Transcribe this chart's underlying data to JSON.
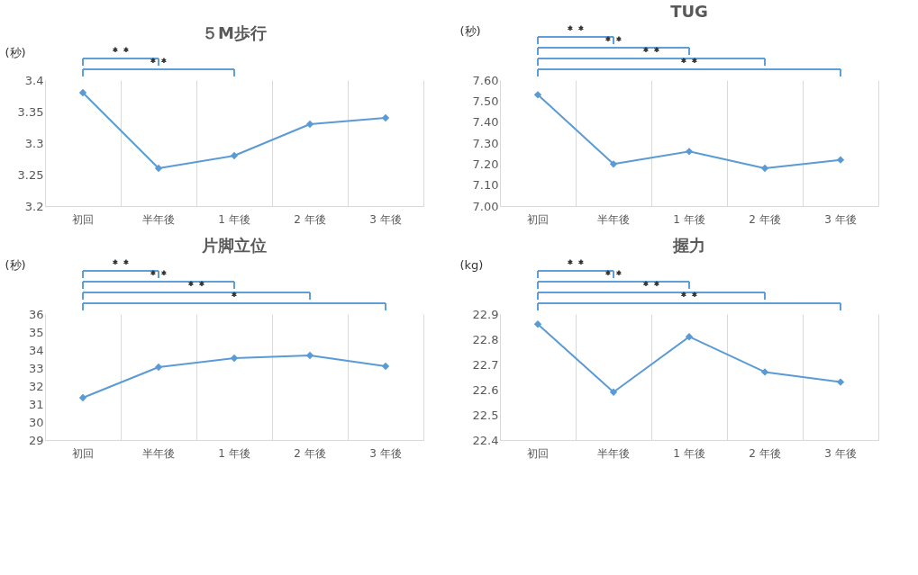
{
  "chart_data": [
    {
      "type": "line",
      "title": "５M歩行",
      "ylabel": "(秒)",
      "categories": [
        "初回",
        "半年後",
        "1 年後",
        "2 年後",
        "3 年後"
      ],
      "values": [
        3.38,
        3.26,
        3.28,
        3.33,
        3.34
      ],
      "color": "#5b9bd5",
      "marker": "diamond",
      "line_style": "solid",
      "ylim": [
        3.2,
        3.4
      ],
      "yticks": [
        3.2,
        3.25,
        3.3,
        3.35,
        3.4
      ],
      "grid": "x",
      "annotations": [
        "＊＊",
        "＊＊"
      ]
    },
    {
      "type": "line",
      "title": "TUG",
      "ylabel": "(秒)",
      "categories": [
        "初回",
        "半年後",
        "1 年後",
        "2 年後",
        "3 年後"
      ],
      "values": [
        7.53,
        7.2,
        7.26,
        7.18,
        7.22
      ],
      "color": "#5b9bd5",
      "marker": "diamond",
      "line_style": "solid",
      "ylim": [
        7.0,
        7.6
      ],
      "yticks": [
        {
          "value": 7.0,
          "label": "7.00"
        },
        {
          "value": 7.1,
          "label": "7.10"
        },
        {
          "value": 7.2,
          "label": "7.20"
        },
        {
          "value": 7.3,
          "label": "7.30"
        },
        {
          "value": 7.4,
          "label": "7.40"
        },
        {
          "value": 7.5,
          "label": "7.50"
        },
        {
          "value": 7.6,
          "label": "7.60"
        }
      ],
      "grid": "x",
      "annotations": [
        "＊＊",
        "＊＊",
        "＊＊",
        "＊＊"
      ]
    },
    {
      "type": "line",
      "title": "片脚立位",
      "ylabel": "(秒)",
      "categories": [
        "初回",
        "半年後",
        "1 年後",
        "2 年後",
        "3 年後"
      ],
      "values": [
        31.35,
        33.05,
        33.55,
        33.7,
        33.1
      ],
      "color": "#5b9bd5",
      "marker": "diamond",
      "line_style": "solid",
      "ylim": [
        29,
        36
      ],
      "yticks": [
        29,
        30,
        31,
        32,
        33,
        34,
        35,
        36
      ],
      "grid": "x",
      "annotations": [
        "＊＊",
        "＊＊",
        "＊＊",
        "＊"
      ]
    },
    {
      "type": "line",
      "title": "握力",
      "ylabel": "(kg)",
      "categories": [
        "初回",
        "半年後",
        "1 年後",
        "2 年後",
        "3 年後"
      ],
      "values": [
        22.86,
        22.59,
        22.81,
        22.67,
        22.63
      ],
      "color": "#5b9bd5",
      "marker": "diamond",
      "line_style": "solid",
      "ylim": [
        22.4,
        22.9
      ],
      "yticks": [
        22.4,
        22.5,
        22.6,
        22.7,
        22.8,
        22.9
      ],
      "grid": "x",
      "annotations": [
        "＊＊",
        "＊＊",
        "＊＊",
        "＊＊"
      ]
    }
  ]
}
